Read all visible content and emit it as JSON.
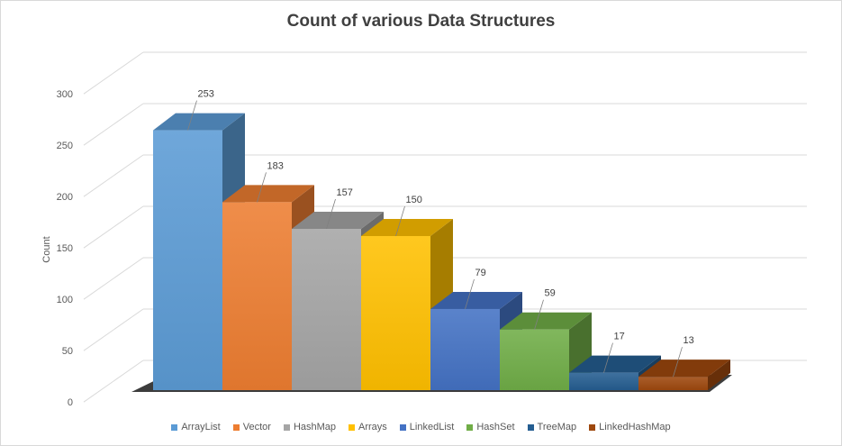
{
  "chart_data": {
    "type": "bar",
    "title": "Count of various Data Structures",
    "xlabel": "",
    "ylabel": "Count",
    "ylim": [
      0,
      300
    ],
    "yticks": [
      "0",
      "50",
      "100",
      "150",
      "200",
      "250",
      "300"
    ],
    "categories": [
      "ArrayList",
      "Vector",
      "HashMap",
      "Arrays",
      "LinkedList",
      "HashSet",
      "TreeMap",
      "LinkedHashMap"
    ],
    "values": [
      253,
      183,
      157,
      150,
      79,
      59,
      17,
      13
    ],
    "data_labels": [
      "253",
      "183",
      "157",
      "150",
      "79",
      "59",
      "17",
      "13"
    ],
    "colors": [
      "#5b9bd5",
      "#ed7d31",
      "#a5a5a5",
      "#ffc000",
      "#4472c4",
      "#70ad47",
      "#255e91",
      "#9e480e"
    ],
    "grid": true,
    "style": "3d-column",
    "legend_position": "bottom"
  }
}
